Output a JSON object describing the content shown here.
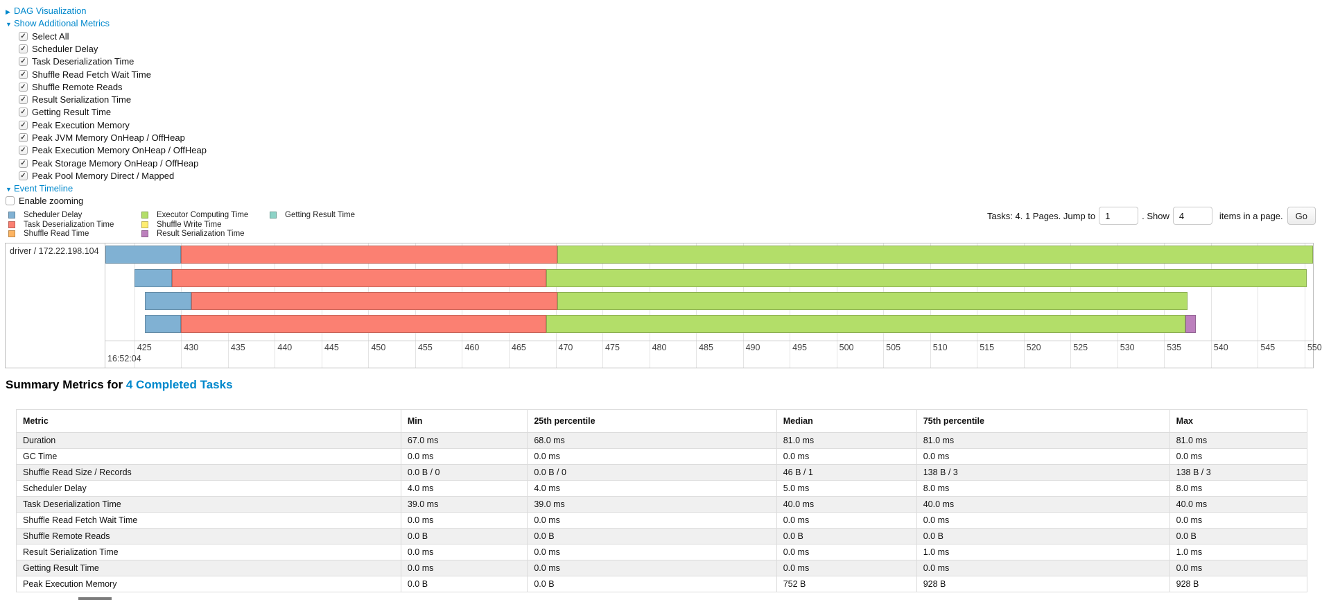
{
  "controls": {
    "dag": {
      "label": "DAG Visualization",
      "expanded": false
    },
    "additional_metrics": {
      "label": "Show Additional Metrics",
      "expanded": true,
      "items": [
        {
          "label": "Select All",
          "checked": true
        },
        {
          "label": "Scheduler Delay",
          "checked": true
        },
        {
          "label": "Task Deserialization Time",
          "checked": true
        },
        {
          "label": "Shuffle Read Fetch Wait Time",
          "checked": true
        },
        {
          "label": "Shuffle Remote Reads",
          "checked": true
        },
        {
          "label": "Result Serialization Time",
          "checked": true
        },
        {
          "label": "Getting Result Time",
          "checked": true
        },
        {
          "label": "Peak Execution Memory",
          "checked": true
        },
        {
          "label": "Peak JVM Memory OnHeap / OffHeap",
          "checked": true
        },
        {
          "label": "Peak Execution Memory OnHeap / OffHeap",
          "checked": true
        },
        {
          "label": "Peak Storage Memory OnHeap / OffHeap",
          "checked": true
        },
        {
          "label": "Peak Pool Memory Direct / Mapped",
          "checked": true
        }
      ]
    },
    "event_timeline": {
      "label": "Event Timeline",
      "expanded": true
    },
    "enable_zooming": {
      "label": "Enable zooming",
      "checked": false
    }
  },
  "legend": {
    "columns": [
      [
        {
          "label": "Scheduler Delay",
          "color": "#80B1D3"
        },
        {
          "label": "Task Deserialization Time",
          "color": "#FB8072"
        },
        {
          "label": "Shuffle Read Time",
          "color": "#FDB462"
        }
      ],
      [
        {
          "label": "Executor Computing Time",
          "color": "#B3DE69"
        },
        {
          "label": "Shuffle Write Time",
          "color": "#FFED6F"
        },
        {
          "label": "Result Serialization Time",
          "color": "#BC80BD"
        }
      ],
      [
        {
          "label": "Getting Result Time",
          "color": "#8DD3C7"
        }
      ]
    ]
  },
  "pagination": {
    "label_tasks": "Tasks: 4. 1 Pages. Jump to",
    "jump_value": "1",
    "label_show": ". Show",
    "show_value": "4",
    "label_items": "items in a page.",
    "go_label": "Go"
  },
  "chart_data": {
    "type": "timeline",
    "group_label": "driver / 172.22.198.104",
    "axis": {
      "tick_start": 425,
      "tick_end": 550,
      "tick_step": 5,
      "window_start": 421.9,
      "window_end": 550.9,
      "unit": "ms",
      "major_label": "16:52:04"
    },
    "colors": {
      "scheduler_delay": "#80B1D3",
      "task_deserialization": "#FB8072",
      "shuffle_read": "#FDB462",
      "executor_computing": "#B3DE69",
      "shuffle_write": "#FFED6F",
      "result_serialization": "#BC80BD",
      "getting_result": "#8DD3C7"
    },
    "tasks": [
      {
        "segments": [
          {
            "metric": "scheduler_delay",
            "start": 421.9,
            "end": 430.0
          },
          {
            "metric": "task_deserialization",
            "start": 430.0,
            "end": 470.2
          },
          {
            "metric": "executor_computing",
            "start": 470.2,
            "end": 551.1
          }
        ]
      },
      {
        "segments": [
          {
            "metric": "scheduler_delay",
            "start": 425.0,
            "end": 429.0
          },
          {
            "metric": "task_deserialization",
            "start": 429.0,
            "end": 469.0
          },
          {
            "metric": "executor_computing",
            "start": 469.0,
            "end": 550.2
          }
        ]
      },
      {
        "segments": [
          {
            "metric": "scheduler_delay",
            "start": 426.1,
            "end": 431.1
          },
          {
            "metric": "task_deserialization",
            "start": 431.1,
            "end": 470.2
          },
          {
            "metric": "executor_computing",
            "start": 470.2,
            "end": 537.5
          }
        ]
      },
      {
        "segments": [
          {
            "metric": "scheduler_delay",
            "start": 426.1,
            "end": 430.0
          },
          {
            "metric": "task_deserialization",
            "start": 430.0,
            "end": 469.0
          },
          {
            "metric": "executor_computing",
            "start": 469.0,
            "end": 537.3
          },
          {
            "metric": "result_serialization",
            "start": 537.3,
            "end": 538.4
          }
        ]
      }
    ]
  },
  "summary_table": {
    "heading_prefix": "Summary Metrics for ",
    "heading_link": "4 Completed Tasks",
    "columns": [
      "Metric",
      "Min",
      "25th percentile",
      "Median",
      "75th percentile",
      "Max"
    ],
    "rows": [
      {
        "metric": "Duration",
        "values": [
          "67.0 ms",
          "68.0 ms",
          "81.0 ms",
          "81.0 ms",
          "81.0 ms"
        ]
      },
      {
        "metric": "GC Time",
        "values": [
          "0.0 ms",
          "0.0 ms",
          "0.0 ms",
          "0.0 ms",
          "0.0 ms"
        ]
      },
      {
        "metric": "Shuffle Read Size / Records",
        "values": [
          "0.0 B / 0",
          "0.0 B / 0",
          "46 B / 1",
          "138 B / 3",
          "138 B / 3"
        ]
      },
      {
        "metric": "Scheduler Delay",
        "values": [
          "4.0 ms",
          "4.0 ms",
          "5.0 ms",
          "8.0 ms",
          "8.0 ms"
        ]
      },
      {
        "metric": "Task Deserialization Time",
        "values": [
          "39.0 ms",
          "39.0 ms",
          "40.0 ms",
          "40.0 ms",
          "40.0 ms"
        ]
      },
      {
        "metric": "Shuffle Read Fetch Wait Time",
        "values": [
          "0.0 ms",
          "0.0 ms",
          "0.0 ms",
          "0.0 ms",
          "0.0 ms"
        ]
      },
      {
        "metric": "Shuffle Remote Reads",
        "values": [
          "0.0 B",
          "0.0 B",
          "0.0 B",
          "0.0 B",
          "0.0 B"
        ]
      },
      {
        "metric": "Result Serialization Time",
        "values": [
          "0.0 ms",
          "0.0 ms",
          "0.0 ms",
          "1.0 ms",
          "1.0 ms"
        ]
      },
      {
        "metric": "Getting Result Time",
        "values": [
          "0.0 ms",
          "0.0 ms",
          "0.0 ms",
          "0.0 ms",
          "0.0 ms"
        ]
      },
      {
        "metric": "Peak Execution Memory",
        "values": [
          "0.0 B",
          "0.0 B",
          "752 B",
          "928 B",
          "928 B"
        ]
      }
    ]
  }
}
